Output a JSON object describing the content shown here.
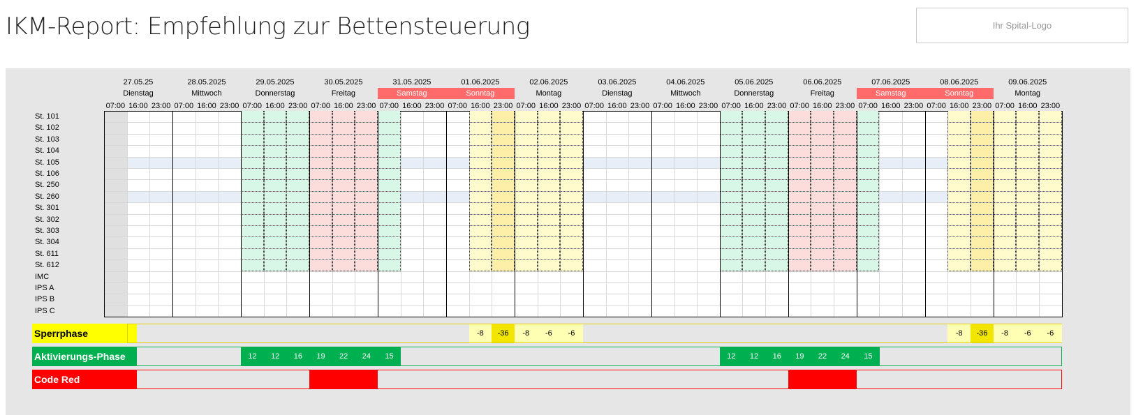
{
  "header": {
    "title": "IKM-Report: Empfehlung zur Bettensteuerung",
    "logo_text": "Ihr Spital-Logo"
  },
  "days": [
    {
      "date": "27.05.25",
      "weekday": "Dienstag",
      "weekend": false
    },
    {
      "date": "28.05.2025",
      "weekday": "Mittwoch",
      "weekend": false
    },
    {
      "date": "29.05.2025",
      "weekday": "Donnerstag",
      "weekend": false
    },
    {
      "date": "30.05.2025",
      "weekday": "Freitag",
      "weekend": false
    },
    {
      "date": "31.05.2025",
      "weekday": "Samstag",
      "weekend": true
    },
    {
      "date": "01.06.2025",
      "weekday": "Sonntag",
      "weekend": true
    },
    {
      "date": "02.06.2025",
      "weekday": "Montag",
      "weekend": false
    },
    {
      "date": "03.06.2025",
      "weekday": "Dienstag",
      "weekend": false
    },
    {
      "date": "04.06.2025",
      "weekday": "Mittwoch",
      "weekend": false
    },
    {
      "date": "05.06.2025",
      "weekday": "Donnerstag",
      "weekend": false
    },
    {
      "date": "06.06.2025",
      "weekday": "Freitag",
      "weekend": false
    },
    {
      "date": "07.06.2025",
      "weekday": "Samstag",
      "weekend": true
    },
    {
      "date": "08.06.2025",
      "weekday": "Sonntag",
      "weekend": true
    },
    {
      "date": "09.06.2025",
      "weekday": "Montag",
      "weekend": false
    }
  ],
  "time_slots": [
    "07:00",
    "16:00",
    "23:00"
  ],
  "stations": [
    "St. 101",
    "St. 102",
    "St. 103",
    "St. 104",
    "St. 105",
    "St. 106",
    "St. 250",
    "St. 260",
    "St. 301",
    "St. 302",
    "St. 303",
    "St. 304",
    "St. 611",
    "St. 612",
    "IMC",
    "IPS A",
    "IPS B",
    "IPS C"
  ],
  "colors": {
    "green_light": "#d9f7e6",
    "red_light": "#fddcdc",
    "yellow_light": "#fffbcc",
    "yellow_mid": "#fdeea8",
    "blue_light": "#e8eef8",
    "sperr_label": "#ffff00",
    "sperr_light": "#ffffb4",
    "sperr_strong": "#f2e600",
    "sperr_border": "#e6cf00",
    "akt_green": "#00b050",
    "code_red": "#ff0000",
    "weekend_header": "#ff6b6b"
  },
  "sperrphase": {
    "label": "Sperrphase",
    "values": [
      {
        "slot": 16,
        "text": "-8",
        "strong": false
      },
      {
        "slot": 17,
        "text": "-36",
        "strong": true
      },
      {
        "slot": 18,
        "text": "-8",
        "strong": false
      },
      {
        "slot": 19,
        "text": "-6",
        "strong": false
      },
      {
        "slot": 20,
        "text": "-6",
        "strong": false
      },
      {
        "slot": 37,
        "text": "-8",
        "strong": false
      },
      {
        "slot": 38,
        "text": "-36",
        "strong": true
      },
      {
        "slot": 39,
        "text": "-8",
        "strong": false
      },
      {
        "slot": 40,
        "text": "-6",
        "strong": false
      },
      {
        "slot": 41,
        "text": "-6",
        "strong": false
      }
    ]
  },
  "aktivierung": {
    "label": "Aktivierungs-Phase",
    "values": [
      {
        "slot": 6,
        "text": "12"
      },
      {
        "slot": 7,
        "text": "12"
      },
      {
        "slot": 8,
        "text": "16"
      },
      {
        "slot": 9,
        "text": "19"
      },
      {
        "slot": 10,
        "text": "22"
      },
      {
        "slot": 11,
        "text": "24"
      },
      {
        "slot": 12,
        "text": "15"
      },
      {
        "slot": 27,
        "text": "12"
      },
      {
        "slot": 28,
        "text": "12"
      },
      {
        "slot": 29,
        "text": "16"
      },
      {
        "slot": 30,
        "text": "19"
      },
      {
        "slot": 31,
        "text": "22"
      },
      {
        "slot": 32,
        "text": "24"
      },
      {
        "slot": 33,
        "text": "15"
      }
    ]
  },
  "code_red": {
    "label": "Code Red",
    "ranges": [
      [
        9,
        11
      ],
      [
        30,
        32
      ]
    ]
  },
  "grid_shading": {
    "shaded_rows_count": 14,
    "green_slots": [
      6,
      7,
      8,
      12,
      27,
      28,
      29,
      33
    ],
    "red_slots": [
      9,
      10,
      11,
      30,
      31,
      32
    ],
    "yellow_slots": [
      16,
      18,
      19,
      20,
      37,
      39,
      40,
      41
    ],
    "yellow_mid_slots": [
      17,
      38
    ],
    "blue_rows": [
      4,
      7
    ],
    "first_slot_grey": true
  }
}
